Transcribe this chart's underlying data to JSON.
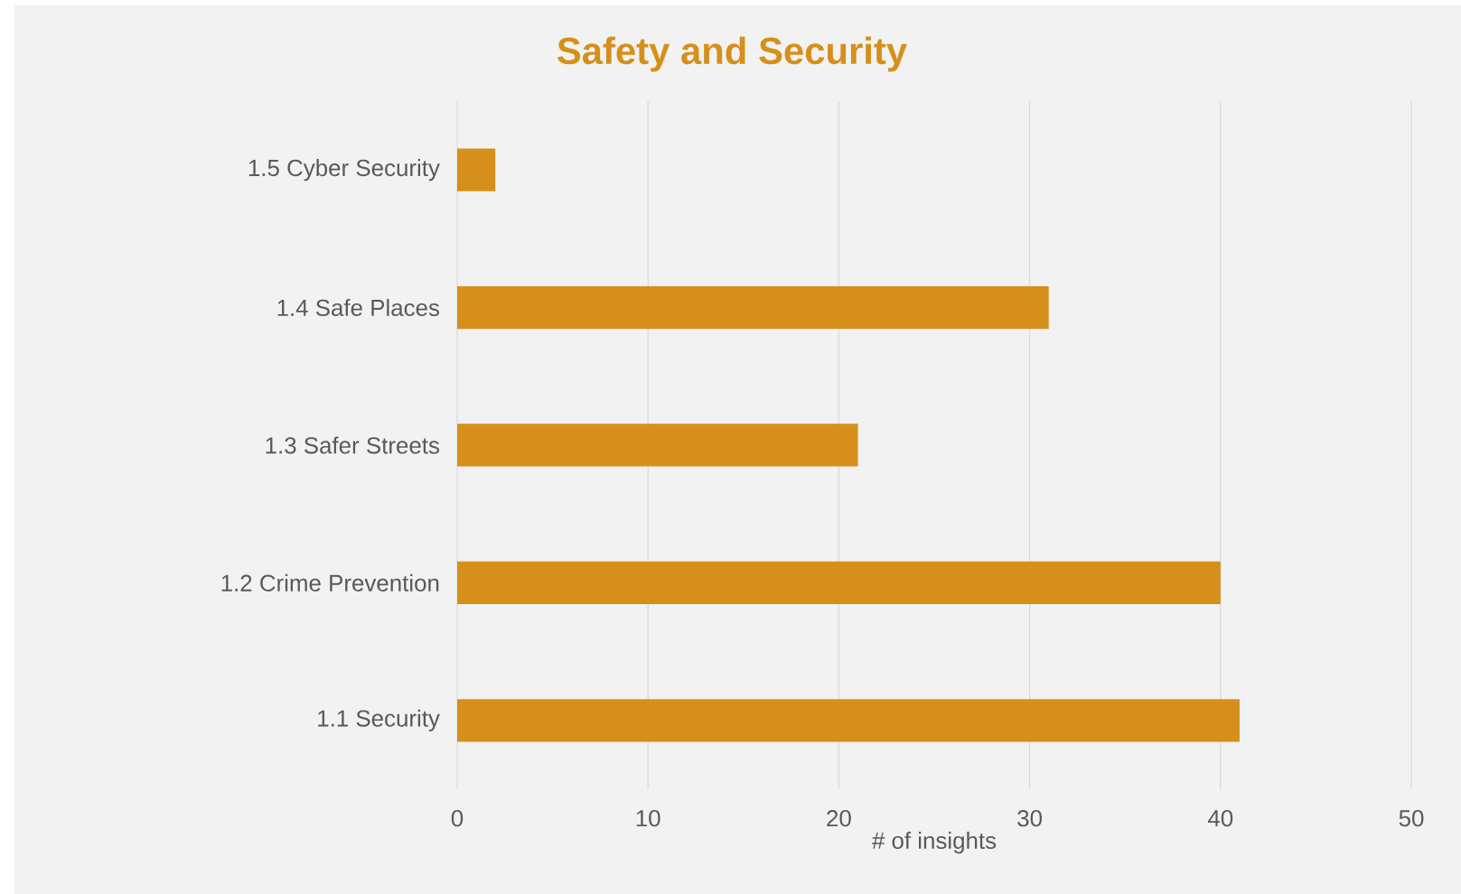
{
  "chart_data": {
    "type": "bar",
    "orientation": "horizontal",
    "title": "Safety and Security",
    "categories": [
      "1.5 Cyber Security",
      "1.4 Safe Places",
      "1.3 Safer Streets",
      "1.2 Crime Prevention",
      "1.1 Security"
    ],
    "values": [
      2,
      31,
      21,
      40,
      41
    ],
    "color": "#d68f1a",
    "xlabel": "# of insights",
    "xlim": [
      0,
      50
    ],
    "xticks": [
      0,
      10,
      20,
      30,
      40,
      50
    ],
    "grid": "x"
  }
}
